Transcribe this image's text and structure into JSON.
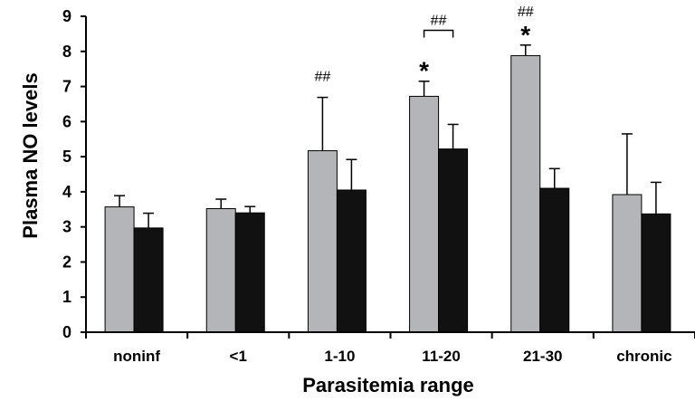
{
  "chart_data": {
    "type": "bar",
    "title": "",
    "xlabel": "Parasitemia range",
    "ylabel": "Plasma NO levels",
    "ylim": [
      0,
      9
    ],
    "yticks": [
      "0",
      "1",
      "2",
      "3",
      "4",
      "5",
      "6",
      "7",
      "8",
      "9"
    ],
    "grid": false,
    "legend": "none",
    "categories": [
      "noninf",
      "<1",
      "1-10",
      "11-20",
      "21-30",
      "chronic"
    ],
    "series": [
      {
        "color": "#b3b5b8",
        "values": [
          3.57,
          3.52,
          5.17,
          6.72,
          7.88,
          3.92
        ],
        "errors": [
          0.32,
          0.27,
          1.52,
          0.43,
          0.3,
          1.73
        ]
      },
      {
        "color": "#111111",
        "values": [
          2.97,
          3.4,
          4.05,
          5.22,
          4.1,
          3.37
        ],
        "errors": [
          0.42,
          0.18,
          0.87,
          0.7,
          0.56,
          0.9
        ]
      }
    ],
    "annotations": [
      {
        "category": 2,
        "series": 0,
        "text": "##",
        "kind": "hash"
      },
      {
        "category": 3,
        "series": 0,
        "text": "*",
        "kind": "star"
      },
      {
        "category": 4,
        "series": 0,
        "text": "*",
        "kind": "star"
      },
      {
        "category": 4,
        "series": 0,
        "text": "##",
        "kind": "hash"
      }
    ],
    "bracket": {
      "from": [
        3,
        0
      ],
      "to": [
        3,
        1
      ],
      "y": 8.6,
      "text": "##"
    }
  }
}
